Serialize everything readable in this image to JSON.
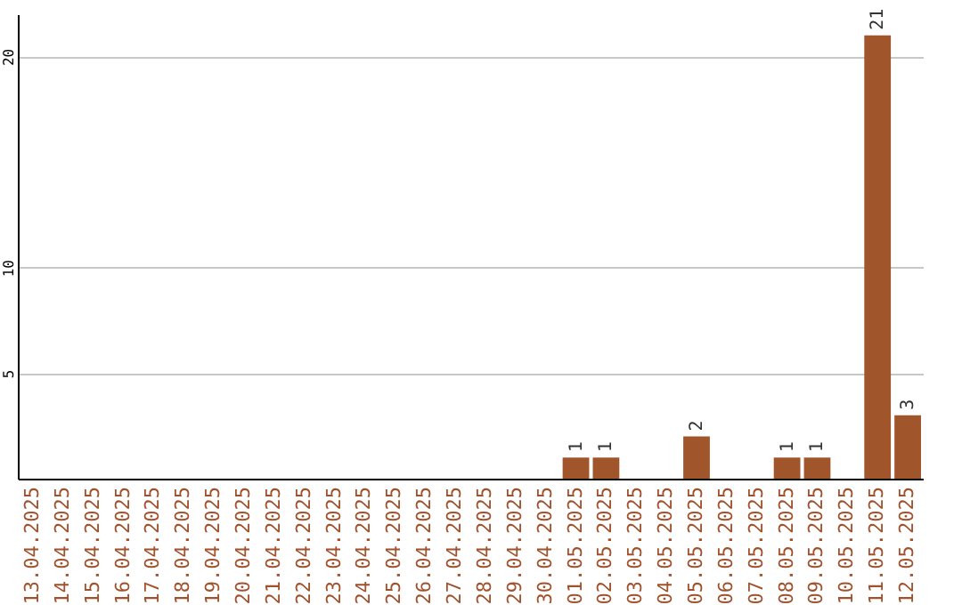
{
  "chart_data": {
    "type": "bar",
    "categories": [
      "13.04.2025",
      "14.04.2025",
      "15.04.2025",
      "16.04.2025",
      "17.04.2025",
      "18.04.2025",
      "19.04.2025",
      "20.04.2025",
      "21.04.2025",
      "22.04.2025",
      "23.04.2025",
      "24.04.2025",
      "25.04.2025",
      "26.04.2025",
      "27.04.2025",
      "28.04.2025",
      "29.04.2025",
      "30.04.2025",
      "01.05.2025",
      "02.05.2025",
      "03.05.2025",
      "04.05.2025",
      "05.05.2025",
      "06.05.2025",
      "07.05.2025",
      "08.05.2025",
      "09.05.2025",
      "10.05.2025",
      "11.05.2025",
      "12.05.2025"
    ],
    "values": [
      0,
      0,
      0,
      0,
      0,
      0,
      0,
      0,
      0,
      0,
      0,
      0,
      0,
      0,
      0,
      0,
      0,
      0,
      1,
      1,
      0,
      0,
      2,
      0,
      0,
      1,
      1,
      0,
      21,
      3
    ],
    "value_labels": [
      null,
      null,
      null,
      null,
      null,
      null,
      null,
      null,
      null,
      null,
      null,
      null,
      null,
      null,
      null,
      null,
      null,
      null,
      "1",
      "1",
      null,
      null,
      "2",
      null,
      null,
      "1",
      "1",
      null,
      "21",
      "3"
    ],
    "color": "#a0562a",
    "ylim": [
      0,
      22
    ],
    "yticks": [
      5,
      10,
      20
    ],
    "grid": "y"
  }
}
